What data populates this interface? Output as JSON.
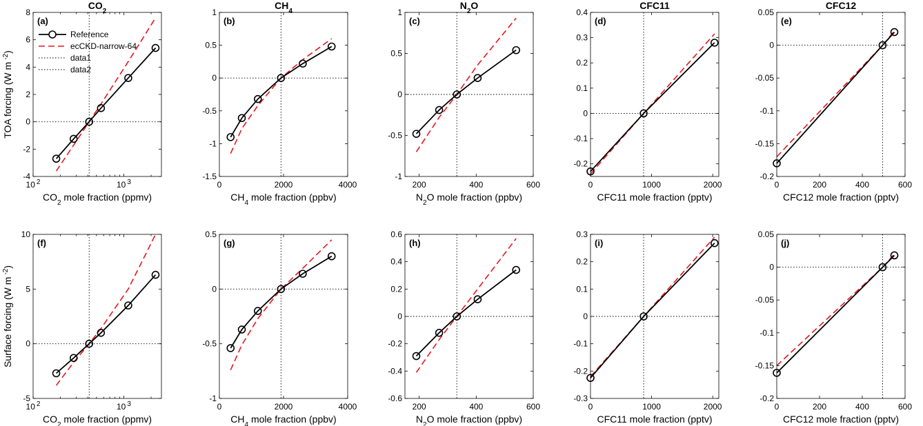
{
  "figure": {
    "col_titles": [
      {
        "main": "CO",
        "sub": "2"
      },
      {
        "main": "CH",
        "sub": "4"
      },
      {
        "main": "N",
        "sub": "2",
        "tail": "O"
      },
      {
        "main": "CFC11"
      },
      {
        "main": "CFC12"
      }
    ],
    "row_ylabels": [
      "TOA forcing (W m",
      "Surface forcing (W m"
    ],
    "ylabel_units": "-2",
    "ylabel_close": ")",
    "xlabels": [
      {
        "pre": "CO",
        "sub": "2",
        "post": " mole fraction (ppmv)"
      },
      {
        "pre": "CH",
        "sub": "4",
        "post": " mole fraction (ppbv)"
      },
      {
        "pre": "N",
        "sub": "2",
        "post": "O mole fraction (ppbv)"
      },
      {
        "pre": "CFC11 mole fraction (pptv)"
      },
      {
        "pre": "CFC12 mole fraction (pptv)"
      }
    ],
    "legend": {
      "placement": "top-left of panel (a)",
      "entries": [
        {
          "label": "Reference",
          "style": "solid-black-circles"
        },
        {
          "label": "ecCKD-narrow-64",
          "style": "dashed-red"
        },
        {
          "label": "data1",
          "style": "dotted-black"
        },
        {
          "label": "data2",
          "style": "dotted-black"
        }
      ]
    },
    "colors": {
      "reference": "#000000",
      "ecckd": "#e8141b",
      "zero": "#000000"
    }
  },
  "chart_data": [
    {
      "type": "line",
      "label": "(a)",
      "xscale": "log",
      "xlim": [
        100,
        2600
      ],
      "ylim": [
        -4,
        8
      ],
      "xticks": [
        {
          "v": 100,
          "base": "10",
          "exp": "2"
        },
        {
          "v": 1000,
          "base": "10",
          "exp": "3"
        }
      ],
      "yticks": [
        {
          "v": -4,
          "t": "-4"
        },
        {
          "v": -2,
          "t": "-2"
        },
        {
          "v": 0,
          "t": "0"
        },
        {
          "v": 2,
          "t": "2"
        },
        {
          "v": 4,
          "t": "4"
        },
        {
          "v": 6,
          "t": "6"
        },
        {
          "v": 8,
          "t": "8"
        }
      ],
      "vline": 415,
      "hline": 0,
      "series": [
        {
          "name": "Reference",
          "x": [
            180,
            280,
            415,
            560,
            1120,
            2240
          ],
          "y": [
            -2.7,
            -1.25,
            0,
            1.0,
            3.2,
            5.4
          ]
        },
        {
          "name": "ecCKD-narrow-64",
          "x": [
            180,
            280,
            415,
            560,
            1120,
            2240
          ],
          "y": [
            -3.6,
            -1.7,
            0,
            1.3,
            4.4,
            7.6
          ]
        }
      ]
    },
    {
      "type": "line",
      "label": "(b)",
      "xscale": "linear",
      "xlim": [
        0,
        4000
      ],
      "ylim": [
        -1.5,
        1
      ],
      "xticks": [
        {
          "v": 0,
          "t": "0"
        },
        {
          "v": 2000,
          "t": "2000"
        },
        {
          "v": 4000,
          "t": "4000"
        }
      ],
      "yticks": [
        {
          "v": -1.5,
          "t": "-1.5"
        },
        {
          "v": -1,
          "t": "-1"
        },
        {
          "v": -0.5,
          "t": "-0.5"
        },
        {
          "v": 0,
          "t": "0"
        },
        {
          "v": 0.5,
          "t": "0.5"
        },
        {
          "v": 1,
          "t": "1"
        }
      ],
      "vline": 1921,
      "hline": 0,
      "series": [
        {
          "name": "Reference",
          "x": [
            350,
            700,
            1200,
            1921,
            2600,
            3500
          ],
          "y": [
            -0.9,
            -0.61,
            -0.32,
            0,
            0.22,
            0.48
          ]
        },
        {
          "name": "ecCKD-narrow-64",
          "x": [
            350,
            700,
            1200,
            1921,
            2600,
            3500
          ],
          "y": [
            -1.15,
            -0.77,
            -0.42,
            0,
            0.28,
            0.6
          ]
        }
      ]
    },
    {
      "type": "line",
      "label": "(c)",
      "xscale": "linear",
      "xlim": [
        150,
        600
      ],
      "ylim": [
        -1,
        1
      ],
      "xticks": [
        {
          "v": 200,
          "t": "200"
        },
        {
          "v": 400,
          "t": "400"
        },
        {
          "v": 600,
          "t": "600"
        }
      ],
      "yticks": [
        {
          "v": -1,
          "t": "-1"
        },
        {
          "v": -0.5,
          "t": "-0.5"
        },
        {
          "v": 0,
          "t": "0"
        },
        {
          "v": 0.5,
          "t": "0.5"
        },
        {
          "v": 1,
          "t": "1"
        }
      ],
      "vline": 332,
      "hline": 0,
      "series": [
        {
          "name": "Reference",
          "x": [
            190,
            270,
            332,
            405,
            540
          ],
          "y": [
            -0.48,
            -0.19,
            0,
            0.2,
            0.54
          ]
        },
        {
          "name": "ecCKD-narrow-64",
          "x": [
            190,
            270,
            332,
            405,
            540
          ],
          "y": [
            -0.7,
            -0.28,
            0,
            0.36,
            0.93
          ]
        }
      ]
    },
    {
      "type": "line",
      "label": "(d)",
      "xscale": "linear",
      "xlim": [
        0,
        2100
      ],
      "ylim": [
        -0.25,
        0.4
      ],
      "xticks": [
        {
          "v": 0,
          "t": "0"
        },
        {
          "v": 1000,
          "t": "1000"
        },
        {
          "v": 2000,
          "t": "2000"
        }
      ],
      "yticks": [
        {
          "v": -0.2,
          "t": "-0.2"
        },
        {
          "v": -0.1,
          "t": "-0.1"
        },
        {
          "v": 0,
          "t": "0"
        },
        {
          "v": 0.1,
          "t": "0.1"
        },
        {
          "v": 0.2,
          "t": "0.2"
        },
        {
          "v": 0.3,
          "t": "0.3"
        },
        {
          "v": 0.4,
          "t": "0.4"
        }
      ],
      "vline": 870,
      "hline": 0,
      "series": [
        {
          "name": "Reference",
          "x": [
            0,
            870,
            2030
          ],
          "y": [
            -0.23,
            0,
            0.28
          ]
        },
        {
          "name": "ecCKD-narrow-64",
          "x": [
            0,
            870,
            2030
          ],
          "y": [
            -0.24,
            0,
            0.315
          ]
        }
      ]
    },
    {
      "type": "line",
      "label": "(e)",
      "xscale": "linear",
      "xlim": [
        0,
        600
      ],
      "ylim": [
        -0.2,
        0.05
      ],
      "xticks": [
        {
          "v": 0,
          "t": "0"
        },
        {
          "v": 200,
          "t": "200"
        },
        {
          "v": 400,
          "t": "400"
        },
        {
          "v": 600,
          "t": "600"
        }
      ],
      "yticks": [
        {
          "v": -0.2,
          "t": "-0.2"
        },
        {
          "v": -0.15,
          "t": "-0.15"
        },
        {
          "v": -0.1,
          "t": "-0.1"
        },
        {
          "v": -0.05,
          "t": "-0.05"
        },
        {
          "v": 0,
          "t": "0"
        },
        {
          "v": 0.05,
          "t": "0.05"
        }
      ],
      "vline": 495,
      "hline": 0,
      "series": [
        {
          "name": "Reference",
          "x": [
            0,
            495,
            550
          ],
          "y": [
            -0.18,
            0,
            0.02
          ]
        },
        {
          "name": "ecCKD-narrow-64",
          "x": [
            0,
            495,
            550
          ],
          "y": [
            -0.17,
            0,
            0.022
          ]
        }
      ]
    },
    {
      "type": "line",
      "label": "(f)",
      "xscale": "log",
      "xlim": [
        100,
        2600
      ],
      "ylim": [
        -5,
        10
      ],
      "xticks": [
        {
          "v": 100,
          "base": "10",
          "exp": "2"
        },
        {
          "v": 1000,
          "base": "10",
          "exp": "3"
        }
      ],
      "yticks": [
        {
          "v": -5,
          "t": "-5"
        },
        {
          "v": 0,
          "t": "0"
        },
        {
          "v": 5,
          "t": "5"
        },
        {
          "v": 10,
          "t": "10"
        }
      ],
      "vline": 415,
      "hline": 0,
      "series": [
        {
          "name": "Reference",
          "x": [
            180,
            280,
            415,
            560,
            1120,
            2240
          ],
          "y": [
            -2.7,
            -1.3,
            0,
            1.0,
            3.5,
            6.3
          ]
        },
        {
          "name": "ecCKD-narrow-64",
          "x": [
            180,
            280,
            415,
            560,
            1120,
            2240
          ],
          "y": [
            -3.8,
            -1.7,
            0,
            1.4,
            5.0,
            10.0
          ]
        }
      ]
    },
    {
      "type": "line",
      "label": "(g)",
      "xscale": "linear",
      "xlim": [
        0,
        4000
      ],
      "ylim": [
        -1,
        0.5
      ],
      "xticks": [
        {
          "v": 0,
          "t": "0"
        },
        {
          "v": 2000,
          "t": "2000"
        },
        {
          "v": 4000,
          "t": "4000"
        }
      ],
      "yticks": [
        {
          "v": -1,
          "t": "-1"
        },
        {
          "v": -0.5,
          "t": "-0.5"
        },
        {
          "v": 0,
          "t": "0"
        },
        {
          "v": 0.5,
          "t": "0.5"
        }
      ],
      "vline": 1921,
      "hline": 0,
      "series": [
        {
          "name": "Reference",
          "x": [
            350,
            700,
            1200,
            1921,
            2600,
            3500
          ],
          "y": [
            -0.54,
            -0.37,
            -0.2,
            0,
            0.14,
            0.3
          ]
        },
        {
          "name": "ecCKD-narrow-64",
          "x": [
            350,
            700,
            1200,
            1921,
            2600,
            3500
          ],
          "y": [
            -0.74,
            -0.51,
            -0.27,
            0,
            0.19,
            0.45
          ]
        }
      ]
    },
    {
      "type": "line",
      "label": "(h)",
      "xscale": "linear",
      "xlim": [
        150,
        600
      ],
      "ylim": [
        -0.6,
        0.6
      ],
      "xticks": [
        {
          "v": 200,
          "t": "200"
        },
        {
          "v": 400,
          "t": "400"
        },
        {
          "v": 600,
          "t": "600"
        }
      ],
      "yticks": [
        {
          "v": -0.6,
          "t": "-0.6"
        },
        {
          "v": -0.4,
          "t": "-0.4"
        },
        {
          "v": -0.2,
          "t": "-0.2"
        },
        {
          "v": 0,
          "t": "0"
        },
        {
          "v": 0.2,
          "t": "0.2"
        },
        {
          "v": 0.4,
          "t": "0.4"
        },
        {
          "v": 0.6,
          "t": "0.6"
        }
      ],
      "vline": 332,
      "hline": 0,
      "series": [
        {
          "name": "Reference",
          "x": [
            190,
            270,
            332,
            405,
            540
          ],
          "y": [
            -0.29,
            -0.12,
            0,
            0.125,
            0.34
          ]
        },
        {
          "name": "ecCKD-narrow-64",
          "x": [
            190,
            270,
            332,
            405,
            540
          ],
          "y": [
            -0.41,
            -0.17,
            0,
            0.2,
            0.57
          ]
        }
      ]
    },
    {
      "type": "line",
      "label": "(i)",
      "xscale": "linear",
      "xlim": [
        0,
        2100
      ],
      "ylim": [
        -0.3,
        0.3
      ],
      "xticks": [
        {
          "v": 0,
          "t": "0"
        },
        {
          "v": 1000,
          "t": "1000"
        },
        {
          "v": 2000,
          "t": "2000"
        }
      ],
      "yticks": [
        {
          "v": -0.3,
          "t": "-0.3"
        },
        {
          "v": -0.2,
          "t": "-0.2"
        },
        {
          "v": -0.1,
          "t": "-0.1"
        },
        {
          "v": 0,
          "t": "0"
        },
        {
          "v": 0.1,
          "t": "0.1"
        },
        {
          "v": 0.2,
          "t": "0.2"
        },
        {
          "v": 0.3,
          "t": "0.3"
        }
      ],
      "vline": 870,
      "hline": 0,
      "series": [
        {
          "name": "Reference",
          "x": [
            0,
            870,
            2030
          ],
          "y": [
            -0.225,
            0,
            0.268
          ]
        },
        {
          "name": "ecCKD-narrow-64",
          "x": [
            0,
            870,
            2030
          ],
          "y": [
            -0.22,
            0,
            0.29
          ]
        }
      ]
    },
    {
      "type": "line",
      "label": "(j)",
      "xscale": "linear",
      "xlim": [
        0,
        600
      ],
      "ylim": [
        -0.2,
        0.05
      ],
      "xticks": [
        {
          "v": 0,
          "t": "0"
        },
        {
          "v": 200,
          "t": "200"
        },
        {
          "v": 400,
          "t": "400"
        },
        {
          "v": 600,
          "t": "600"
        }
      ],
      "yticks": [
        {
          "v": -0.2,
          "t": "-0.2"
        },
        {
          "v": -0.15,
          "t": "-0.15"
        },
        {
          "v": -0.1,
          "t": "-0.1"
        },
        {
          "v": -0.05,
          "t": "-0.05"
        },
        {
          "v": 0,
          "t": "0"
        },
        {
          "v": 0.05,
          "t": "0.05"
        }
      ],
      "vline": 495,
      "hline": 0,
      "series": [
        {
          "name": "Reference",
          "x": [
            0,
            495,
            550
          ],
          "y": [
            -0.161,
            0,
            0.018
          ]
        },
        {
          "name": "ecCKD-narrow-64",
          "x": [
            0,
            495,
            550
          ],
          "y": [
            -0.15,
            0,
            0.02
          ]
        }
      ]
    }
  ]
}
